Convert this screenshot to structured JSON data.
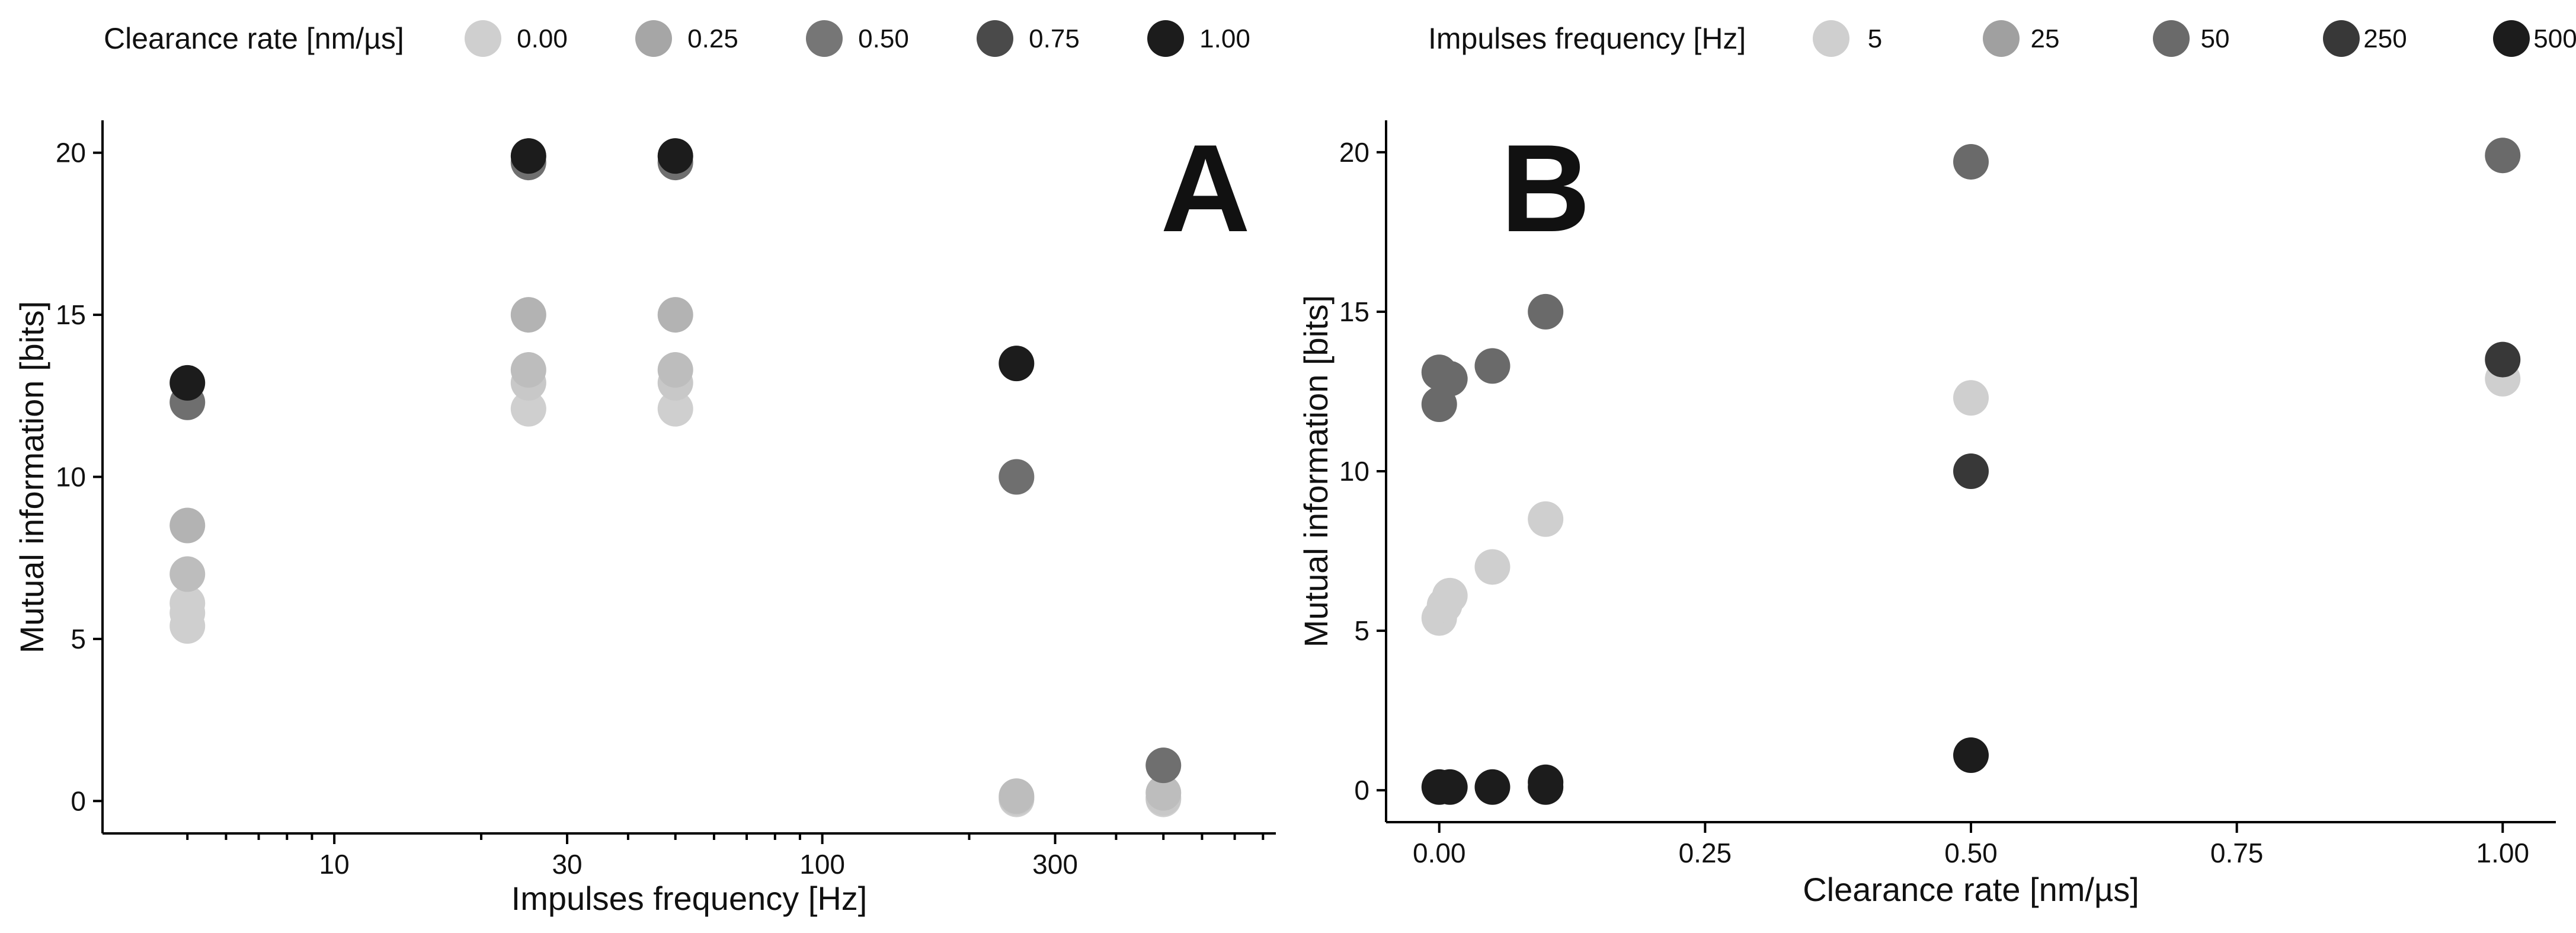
{
  "chart_data": [
    {
      "id": "A",
      "type": "scatter",
      "panel_label": "A",
      "xlabel": "Impulses frequency [Hz]",
      "ylabel": "Mutual information [bits]",
      "xscale": "log",
      "xlim": [
        3.35,
        850
      ],
      "ylim": [
        -1,
        21
      ],
      "x_ticks": [
        {
          "value": 10,
          "label": "10"
        },
        {
          "value": 30,
          "label": "30"
        },
        {
          "value": 100,
          "label": "100"
        },
        {
          "value": 300,
          "label": "300"
        }
      ],
      "x_minor_ticks": [
        5,
        6,
        7,
        8,
        9,
        20,
        40,
        50,
        60,
        70,
        80,
        90,
        200,
        400,
        500,
        600,
        700,
        800
      ],
      "y_ticks": [
        {
          "value": 0,
          "label": "0"
        },
        {
          "value": 5,
          "label": "5"
        },
        {
          "value": 10,
          "label": "10"
        },
        {
          "value": 15,
          "label": "15"
        },
        {
          "value": 20,
          "label": "20"
        }
      ],
      "legend": {
        "title": "Clearance rate [nm/µs]",
        "position": "top",
        "entries": [
          {
            "label": "0.00",
            "color": "#cfcfcf"
          },
          {
            "label": "0.25",
            "color": "#a6a6a6"
          },
          {
            "label": "0.50",
            "color": "#767676"
          },
          {
            "label": "0.75",
            "color": "#4a4a4a"
          },
          {
            "label": "1.00",
            "color": "#1c1c1c"
          }
        ]
      },
      "points": [
        {
          "x": 5,
          "y": 5.4,
          "color": "#cfcfcf"
        },
        {
          "x": 5,
          "y": 5.8,
          "color": "#cfcfcf"
        },
        {
          "x": 5,
          "y": 6.1,
          "color": "#cfcfcf"
        },
        {
          "x": 5,
          "y": 7.0,
          "color": "#bdbdbd"
        },
        {
          "x": 5,
          "y": 8.5,
          "color": "#b3b3b3"
        },
        {
          "x": 5,
          "y": 12.3,
          "color": "#6f6f6f"
        },
        {
          "x": 5,
          "y": 12.9,
          "color": "#1c1c1c"
        },
        {
          "x": 25,
          "y": 12.1,
          "color": "#cfcfcf"
        },
        {
          "x": 25,
          "y": 12.9,
          "color": "#c8c8c8"
        },
        {
          "x": 25,
          "y": 13.3,
          "color": "#bdbdbd"
        },
        {
          "x": 25,
          "y": 15.0,
          "color": "#b3b3b3"
        },
        {
          "x": 25,
          "y": 19.7,
          "color": "#6f6f6f"
        },
        {
          "x": 25,
          "y": 19.9,
          "color": "#1c1c1c"
        },
        {
          "x": 50,
          "y": 12.1,
          "color": "#cfcfcf"
        },
        {
          "x": 50,
          "y": 12.9,
          "color": "#c8c8c8"
        },
        {
          "x": 50,
          "y": 13.3,
          "color": "#bdbdbd"
        },
        {
          "x": 50,
          "y": 15.0,
          "color": "#b3b3b3"
        },
        {
          "x": 50,
          "y": 19.7,
          "color": "#6f6f6f"
        },
        {
          "x": 50,
          "y": 19.9,
          "color": "#1c1c1c"
        },
        {
          "x": 250,
          "y": 0.05,
          "color": "#cfcfcf"
        },
        {
          "x": 250,
          "y": 0.1,
          "color": "#c8c8c8"
        },
        {
          "x": 250,
          "y": 0.15,
          "color": "#bdbdbd"
        },
        {
          "x": 250,
          "y": 10.0,
          "color": "#6f6f6f"
        },
        {
          "x": 250,
          "y": 13.5,
          "color": "#1c1c1c"
        },
        {
          "x": 500,
          "y": 0.05,
          "color": "#cfcfcf"
        },
        {
          "x": 500,
          "y": 0.1,
          "color": "#c8c8c8"
        },
        {
          "x": 500,
          "y": 0.25,
          "color": "#bdbdbd"
        },
        {
          "x": 500,
          "y": 1.1,
          "color": "#6f6f6f"
        }
      ]
    },
    {
      "id": "B",
      "type": "scatter",
      "panel_label": "B",
      "xlabel": "Clearance rate [nm/µs]",
      "ylabel": "Mutual information [bits]",
      "xscale": "linear",
      "xlim": [
        -0.05,
        1.05
      ],
      "ylim": [
        -1,
        21
      ],
      "x_ticks": [
        {
          "value": 0,
          "label": "0.00"
        },
        {
          "value": 0.25,
          "label": "0.25"
        },
        {
          "value": 0.5,
          "label": "0.50"
        },
        {
          "value": 0.75,
          "label": "0.75"
        },
        {
          "value": 1.0,
          "label": "1.00"
        }
      ],
      "x_minor_ticks": [],
      "y_ticks": [
        {
          "value": 0,
          "label": "0"
        },
        {
          "value": 5,
          "label": "5"
        },
        {
          "value": 10,
          "label": "10"
        },
        {
          "value": 15,
          "label": "15"
        },
        {
          "value": 20,
          "label": "20"
        }
      ],
      "legend": {
        "title": "Impulses frequency [Hz]",
        "position": "top",
        "entries": [
          {
            "label": "5",
            "color": "#cfcfcf"
          },
          {
            "label": "25",
            "color": "#a0a0a0"
          },
          {
            "label": "50",
            "color": "#6a6a6a"
          },
          {
            "label": "250",
            "color": "#383838"
          },
          {
            "label": "500",
            "color": "#1c1c1c"
          }
        ]
      },
      "points": [
        {
          "x": 0.0,
          "y": 5.4,
          "color": "#cfcfcf"
        },
        {
          "x": 0.005,
          "y": 5.8,
          "color": "#cfcfcf"
        },
        {
          "x": 0.01,
          "y": 6.1,
          "color": "#cfcfcf"
        },
        {
          "x": 0.05,
          "y": 7.0,
          "color": "#cfcfcf"
        },
        {
          "x": 0.1,
          "y": 8.5,
          "color": "#cfcfcf"
        },
        {
          "x": 0.5,
          "y": 12.3,
          "color": "#cfcfcf"
        },
        {
          "x": 1.0,
          "y": 12.9,
          "color": "#cfcfcf"
        },
        {
          "x": 0.0,
          "y": 12.1,
          "color": "#6a6a6a"
        },
        {
          "x": 0.01,
          "y": 12.9,
          "color": "#6a6a6a"
        },
        {
          "x": 0.0,
          "y": 13.1,
          "color": "#6a6a6a"
        },
        {
          "x": 0.05,
          "y": 13.3,
          "color": "#6a6a6a"
        },
        {
          "x": 0.1,
          "y": 15.0,
          "color": "#6a6a6a"
        },
        {
          "x": 0.5,
          "y": 19.7,
          "color": "#6a6a6a"
        },
        {
          "x": 1.0,
          "y": 19.9,
          "color": "#6a6a6a"
        },
        {
          "x": 0.5,
          "y": 10.0,
          "color": "#383838"
        },
        {
          "x": 1.0,
          "y": 13.5,
          "color": "#383838"
        },
        {
          "x": 0.5,
          "y": 1.1,
          "color": "#1c1c1c"
        },
        {
          "x": 0.0,
          "y": 0.1,
          "color": "#1c1c1c"
        },
        {
          "x": 0.01,
          "y": 0.1,
          "color": "#1c1c1c"
        },
        {
          "x": 0.05,
          "y": 0.1,
          "color": "#1c1c1c"
        },
        {
          "x": 0.1,
          "y": 0.1,
          "color": "#1c1c1c"
        },
        {
          "x": 0.1,
          "y": 0.25,
          "color": "#1c1c1c"
        }
      ]
    }
  ]
}
